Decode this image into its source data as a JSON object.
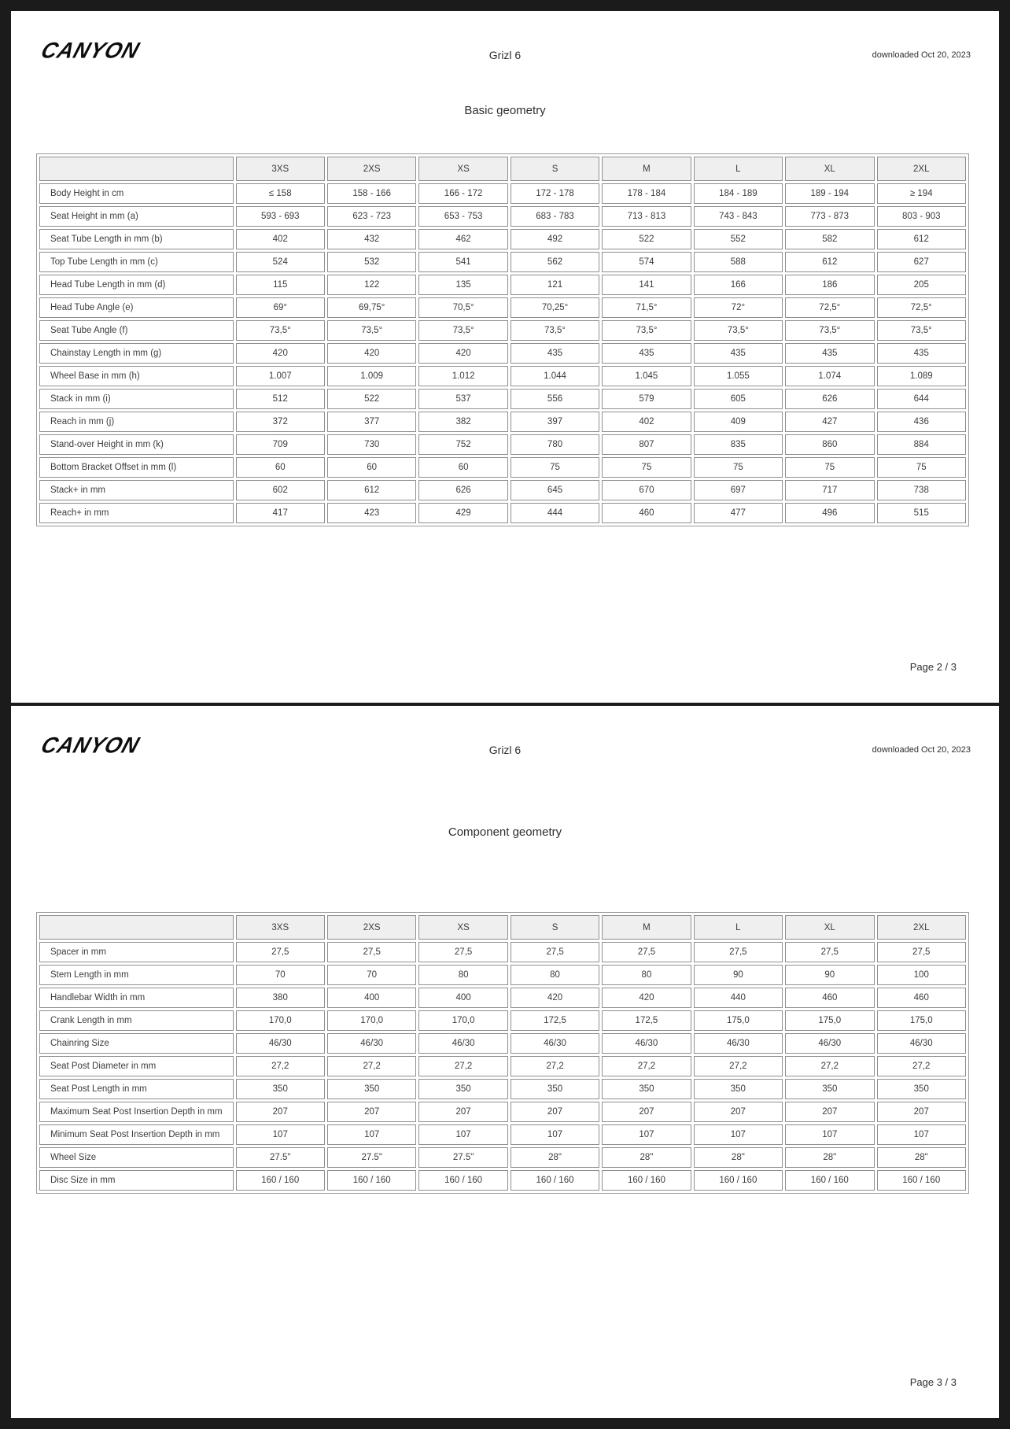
{
  "background_color": "#1b1b1b",
  "border_color": "#8e8e8e",
  "header_bg_color": "#efefef",
  "pages": [
    {
      "header": {
        "logo": "CANYON",
        "title": "Grizl 6",
        "downloaded": "downloaded Oct 20, 2023"
      },
      "section_title": "Basic geometry",
      "footer": "Page 2 / 3",
      "table": {
        "columns": [
          "3XS",
          "2XS",
          "XS",
          "S",
          "M",
          "L",
          "XL",
          "2XL"
        ],
        "rows": [
          {
            "label": "Body Height in cm",
            "values": [
              "≤ 158",
              "158 - 166",
              "166 - 172",
              "172 - 178",
              "178 - 184",
              "184 - 189",
              "189 - 194",
              "≥ 194"
            ]
          },
          {
            "label": "Seat Height in mm (a)",
            "values": [
              "593 - 693",
              "623 - 723",
              "653 - 753",
              "683 - 783",
              "713 - 813",
              "743 - 843",
              "773 - 873",
              "803 - 903"
            ]
          },
          {
            "label": "Seat Tube Length in mm (b)",
            "values": [
              "402",
              "432",
              "462",
              "492",
              "522",
              "552",
              "582",
              "612"
            ]
          },
          {
            "label": "Top Tube Length in mm (c)",
            "values": [
              "524",
              "532",
              "541",
              "562",
              "574",
              "588",
              "612",
              "627"
            ]
          },
          {
            "label": "Head Tube Length in mm (d)",
            "values": [
              "115",
              "122",
              "135",
              "121",
              "141",
              "166",
              "186",
              "205"
            ]
          },
          {
            "label": "Head Tube Angle (e)",
            "values": [
              "69°",
              "69,75°",
              "70,5°",
              "70,25°",
              "71,5°",
              "72°",
              "72,5°",
              "72,5°"
            ]
          },
          {
            "label": "Seat Tube Angle (f)",
            "values": [
              "73,5°",
              "73,5°",
              "73,5°",
              "73,5°",
              "73,5°",
              "73,5°",
              "73,5°",
              "73,5°"
            ]
          },
          {
            "label": "Chainstay Length in mm (g)",
            "values": [
              "420",
              "420",
              "420",
              "435",
              "435",
              "435",
              "435",
              "435"
            ]
          },
          {
            "label": "Wheel Base in mm (h)",
            "values": [
              "1.007",
              "1.009",
              "1.012",
              "1.044",
              "1.045",
              "1.055",
              "1.074",
              "1.089"
            ]
          },
          {
            "label": "Stack in mm (i)",
            "values": [
              "512",
              "522",
              "537",
              "556",
              "579",
              "605",
              "626",
              "644"
            ]
          },
          {
            "label": "Reach in mm (j)",
            "values": [
              "372",
              "377",
              "382",
              "397",
              "402",
              "409",
              "427",
              "436"
            ]
          },
          {
            "label": "Stand-over Height in mm (k)",
            "values": [
              "709",
              "730",
              "752",
              "780",
              "807",
              "835",
              "860",
              "884"
            ]
          },
          {
            "label": "Bottom Bracket Offset in mm (l)",
            "values": [
              "60",
              "60",
              "60",
              "75",
              "75",
              "75",
              "75",
              "75"
            ]
          },
          {
            "label": "Stack+ in mm",
            "values": [
              "602",
              "612",
              "626",
              "645",
              "670",
              "697",
              "717",
              "738"
            ]
          },
          {
            "label": "Reach+ in mm",
            "values": [
              "417",
              "423",
              "429",
              "444",
              "460",
              "477",
              "496",
              "515"
            ]
          }
        ]
      }
    },
    {
      "header": {
        "logo": "CANYON",
        "title": "Grizl 6",
        "downloaded": "downloaded Oct 20, 2023"
      },
      "section_title": "Component geometry",
      "footer": "Page 3 / 3",
      "table": {
        "columns": [
          "3XS",
          "2XS",
          "XS",
          "S",
          "M",
          "L",
          "XL",
          "2XL"
        ],
        "rows": [
          {
            "label": "Spacer in mm",
            "values": [
              "27,5",
              "27,5",
              "27,5",
              "27,5",
              "27,5",
              "27,5",
              "27,5",
              "27,5"
            ]
          },
          {
            "label": "Stem Length in mm",
            "values": [
              "70",
              "70",
              "80",
              "80",
              "80",
              "90",
              "90",
              "100"
            ]
          },
          {
            "label": "Handlebar Width in mm",
            "values": [
              "380",
              "400",
              "400",
              "420",
              "420",
              "440",
              "460",
              "460"
            ]
          },
          {
            "label": "Crank Length in mm",
            "values": [
              "170,0",
              "170,0",
              "170,0",
              "172,5",
              "172,5",
              "175,0",
              "175,0",
              "175,0"
            ]
          },
          {
            "label": "Chainring Size",
            "values": [
              "46/30",
              "46/30",
              "46/30",
              "46/30",
              "46/30",
              "46/30",
              "46/30",
              "46/30"
            ]
          },
          {
            "label": "Seat Post Diameter in mm",
            "values": [
              "27,2",
              "27,2",
              "27,2",
              "27,2",
              "27,2",
              "27,2",
              "27,2",
              "27,2"
            ]
          },
          {
            "label": "Seat Post Length in mm",
            "values": [
              "350",
              "350",
              "350",
              "350",
              "350",
              "350",
              "350",
              "350"
            ]
          },
          {
            "label": "Maximum Seat Post Insertion Depth in mm",
            "values": [
              "207",
              "207",
              "207",
              "207",
              "207",
              "207",
              "207",
              "207"
            ]
          },
          {
            "label": "Minimum Seat Post Insertion Depth in mm",
            "values": [
              "107",
              "107",
              "107",
              "107",
              "107",
              "107",
              "107",
              "107"
            ]
          },
          {
            "label": "Wheel Size",
            "values": [
              "27.5\"",
              "27.5\"",
              "27.5\"",
              "28\"",
              "28\"",
              "28\"",
              "28\"",
              "28\""
            ]
          },
          {
            "label": "Disc Size in mm",
            "values": [
              "160 / 160",
              "160 / 160",
              "160 / 160",
              "160 / 160",
              "160 / 160",
              "160 / 160",
              "160 / 160",
              "160 / 160"
            ]
          }
        ]
      }
    }
  ]
}
